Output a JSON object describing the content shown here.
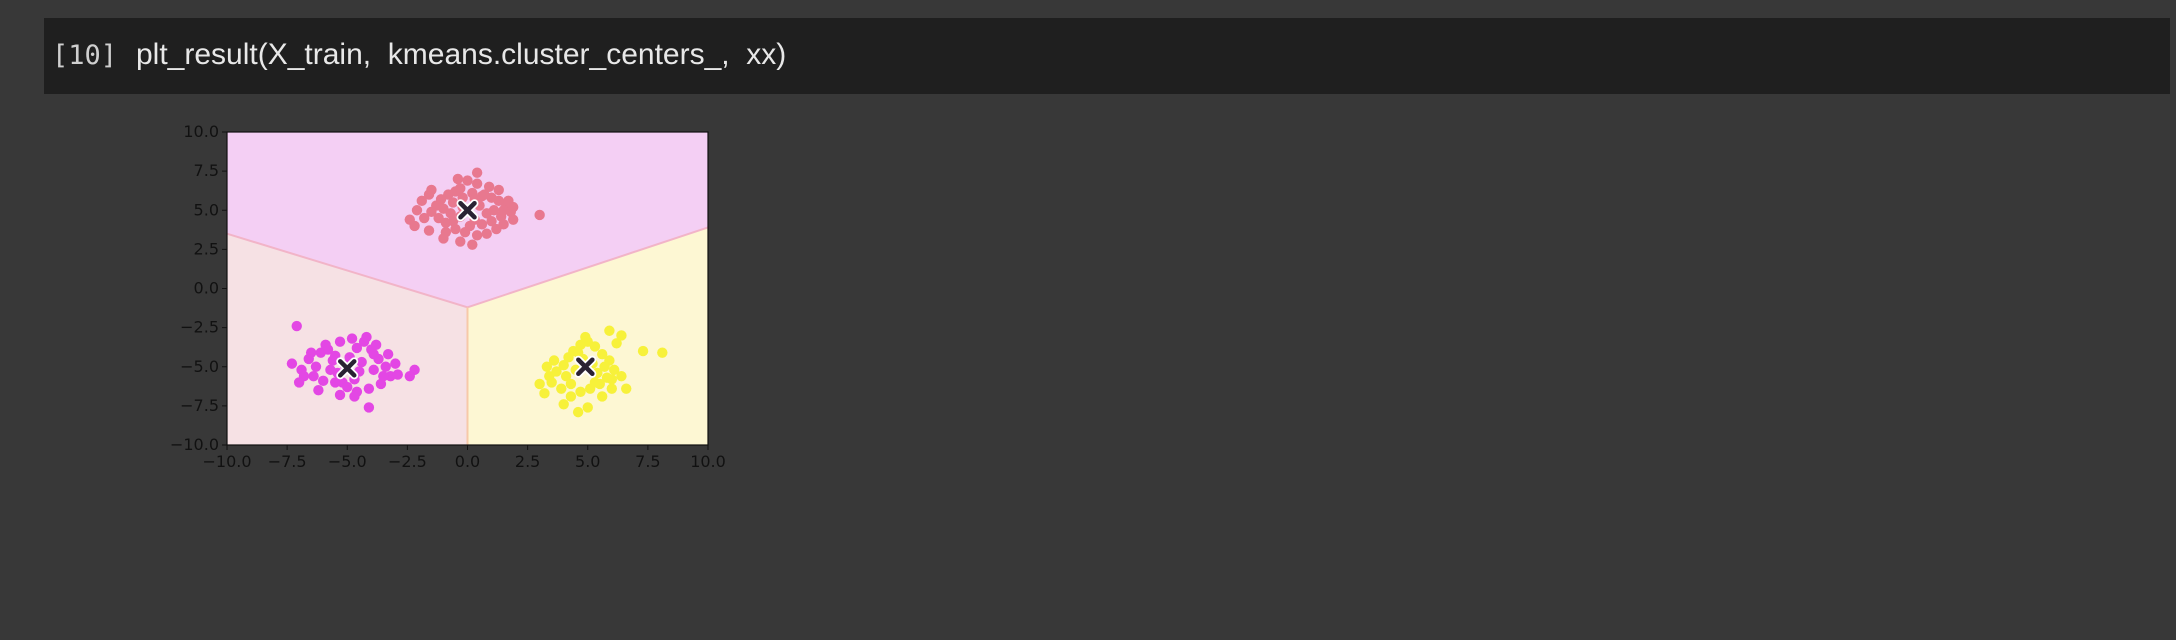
{
  "cell": {
    "execution_count": "[10]",
    "code": "plt_result(X_train,  kmeans.cluster_centers_,  xx)"
  },
  "chart_data": {
    "type": "scatter",
    "title": "",
    "xlabel": "",
    "ylabel": "",
    "xlim": [
      -10.0,
      10.0
    ],
    "ylim": [
      -10.0,
      10.0
    ],
    "xticks": [
      "−10.0",
      "−7.5",
      "−5.0",
      "−2.5",
      "0.0",
      "2.5",
      "5.0",
      "7.5",
      "10.0"
    ],
    "yticks": [
      "10.0",
      "7.5",
      "5.0",
      "2.5",
      "0.0",
      "−2.5",
      "−5.0",
      "−7.5",
      "−10.0"
    ],
    "grid": false,
    "legend": "none",
    "regions": [
      {
        "name": "top",
        "color": "#f4cff4"
      },
      {
        "name": "bottom-left",
        "color": "#f6e1e4"
      },
      {
        "name": "bottom-right",
        "color": "#fdf7d3"
      }
    ],
    "centers": [
      {
        "x": 0.0,
        "y": 5.0
      },
      {
        "x": -5.0,
        "y": -5.1
      },
      {
        "x": 4.9,
        "y": -5.0
      }
    ],
    "series": [
      {
        "color": "#e8788f",
        "points": [
          [
            -0.8,
            6.0
          ],
          [
            -0.5,
            6.2
          ],
          [
            -0.2,
            5.8
          ],
          [
            0.2,
            6.1
          ],
          [
            0.6,
            5.9
          ],
          [
            1.0,
            5.8
          ],
          [
            1.3,
            5.6
          ],
          [
            1.6,
            5.2
          ],
          [
            1.8,
            4.9
          ],
          [
            1.4,
            4.6
          ],
          [
            1.0,
            4.3
          ],
          [
            0.6,
            4.1
          ],
          [
            0.3,
            4.4
          ],
          [
            -0.3,
            4.6
          ],
          [
            -0.7,
            4.8
          ],
          [
            -1.0,
            5.1
          ],
          [
            -1.3,
            5.3
          ],
          [
            -1.5,
            4.9
          ],
          [
            -1.2,
            4.5
          ],
          [
            -0.9,
            4.2
          ],
          [
            -0.5,
            3.8
          ],
          [
            -0.1,
            3.6
          ],
          [
            0.4,
            3.4
          ],
          [
            0.8,
            3.5
          ],
          [
            1.2,
            3.8
          ],
          [
            1.5,
            4.1
          ],
          [
            1.9,
            4.4
          ],
          [
            1.7,
            5.6
          ],
          [
            1.3,
            6.3
          ],
          [
            0.9,
            6.5
          ],
          [
            0.4,
            6.7
          ],
          [
            0.0,
            6.9
          ],
          [
            -0.4,
            7.0
          ],
          [
            -1.6,
            6.0
          ],
          [
            -1.9,
            5.6
          ],
          [
            -2.1,
            5.0
          ],
          [
            -2.4,
            4.4
          ],
          [
            -2.2,
            4.0
          ],
          [
            -1.6,
            3.7
          ],
          [
            -1.0,
            3.2
          ],
          [
            -0.3,
            3.0
          ],
          [
            0.2,
            2.8
          ],
          [
            0.4,
            7.4
          ],
          [
            3.0,
            4.7
          ],
          [
            -1.5,
            6.3
          ],
          [
            -0.6,
            5.5
          ],
          [
            0.5,
            5.3
          ],
          [
            1.1,
            5.0
          ],
          [
            -0.2,
            5.2
          ],
          [
            0.8,
            4.8
          ],
          [
            -1.1,
            5.7
          ],
          [
            0.1,
            4.0
          ],
          [
            1.5,
            5.0
          ],
          [
            -0.9,
            3.6
          ],
          [
            0.7,
            6.0
          ],
          [
            -0.3,
            6.4
          ],
          [
            1.9,
            5.2
          ],
          [
            -1.8,
            4.5
          ],
          [
            0.3,
            5.7
          ],
          [
            -0.6,
            4.3
          ]
        ]
      },
      {
        "color": "#e347e4",
        "points": [
          [
            -7.1,
            -2.4
          ],
          [
            -7.3,
            -4.8
          ],
          [
            -6.9,
            -5.2
          ],
          [
            -6.6,
            -4.5
          ],
          [
            -6.4,
            -5.6
          ],
          [
            -6.1,
            -4.1
          ],
          [
            -5.8,
            -3.9
          ],
          [
            -5.6,
            -4.6
          ],
          [
            -5.4,
            -5.4
          ],
          [
            -5.2,
            -6.0
          ],
          [
            -4.9,
            -4.4
          ],
          [
            -4.6,
            -3.8
          ],
          [
            -4.3,
            -3.4
          ],
          [
            -4.0,
            -3.9
          ],
          [
            -3.7,
            -4.5
          ],
          [
            -3.4,
            -5.0
          ],
          [
            -3.2,
            -5.6
          ],
          [
            -3.6,
            -6.1
          ],
          [
            -4.1,
            -6.4
          ],
          [
            -4.6,
            -6.6
          ],
          [
            -5.0,
            -6.3
          ],
          [
            -5.5,
            -6.0
          ],
          [
            -6.0,
            -5.9
          ],
          [
            -6.3,
            -5.0
          ],
          [
            -5.9,
            -3.6
          ],
          [
            -5.3,
            -3.4
          ],
          [
            -4.8,
            -3.2
          ],
          [
            -4.2,
            -3.1
          ],
          [
            -3.8,
            -3.6
          ],
          [
            -3.3,
            -4.2
          ],
          [
            -3.0,
            -4.8
          ],
          [
            -2.9,
            -5.5
          ],
          [
            -2.2,
            -5.2
          ],
          [
            -2.4,
            -5.6
          ],
          [
            -4.1,
            -7.6
          ],
          [
            -4.5,
            -5.3
          ],
          [
            -5.1,
            -4.9
          ],
          [
            -5.7,
            -5.2
          ],
          [
            -3.9,
            -5.2
          ],
          [
            -4.4,
            -4.7
          ],
          [
            -6.8,
            -5.6
          ],
          [
            -7.0,
            -6.0
          ],
          [
            -6.2,
            -6.5
          ],
          [
            -5.3,
            -6.8
          ],
          [
            -4.7,
            -6.9
          ],
          [
            -3.5,
            -5.6
          ],
          [
            -6.5,
            -4.1
          ],
          [
            -3.9,
            -4.2
          ],
          [
            -5.5,
            -4.3
          ],
          [
            -4.7,
            -5.8
          ]
        ]
      },
      {
        "color": "#f7f13a",
        "points": [
          [
            3.0,
            -6.1
          ],
          [
            3.4,
            -5.6
          ],
          [
            3.7,
            -5.3
          ],
          [
            4.0,
            -4.9
          ],
          [
            4.2,
            -4.4
          ],
          [
            4.4,
            -4.0
          ],
          [
            4.7,
            -3.6
          ],
          [
            5.0,
            -3.4
          ],
          [
            5.3,
            -3.7
          ],
          [
            5.6,
            -4.2
          ],
          [
            5.9,
            -4.6
          ],
          [
            6.1,
            -5.2
          ],
          [
            5.8,
            -5.7
          ],
          [
            5.5,
            -6.1
          ],
          [
            5.1,
            -6.4
          ],
          [
            4.7,
            -6.6
          ],
          [
            4.3,
            -6.9
          ],
          [
            3.9,
            -6.4
          ],
          [
            3.5,
            -6.0
          ],
          [
            3.2,
            -6.7
          ],
          [
            4.0,
            -7.4
          ],
          [
            4.6,
            -7.9
          ],
          [
            5.0,
            -7.6
          ],
          [
            5.6,
            -6.9
          ],
          [
            6.0,
            -6.4
          ],
          [
            6.6,
            -6.4
          ],
          [
            6.2,
            -3.5
          ],
          [
            5.9,
            -2.7
          ],
          [
            6.4,
            -3.0
          ],
          [
            7.3,
            -4.0
          ],
          [
            8.1,
            -4.1
          ],
          [
            4.5,
            -5.2
          ],
          [
            5.2,
            -4.8
          ],
          [
            4.8,
            -4.5
          ],
          [
            5.4,
            -5.4
          ],
          [
            4.1,
            -5.6
          ],
          [
            3.6,
            -4.6
          ],
          [
            4.9,
            -3.1
          ],
          [
            5.7,
            -5.0
          ],
          [
            6.4,
            -5.6
          ],
          [
            3.3,
            -5.0
          ],
          [
            4.3,
            -6.1
          ],
          [
            5.3,
            -6.0
          ],
          [
            6.0,
            -5.8
          ],
          [
            4.6,
            -4.1
          ]
        ]
      }
    ]
  }
}
